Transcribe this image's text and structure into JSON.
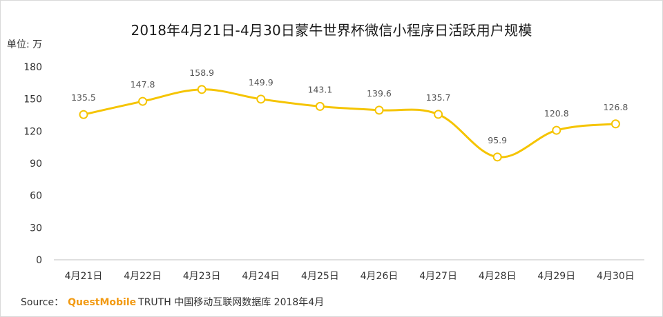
{
  "chart_data": {
    "type": "line",
    "title": "2018年4月21日-4月30日蒙牛世界杯微信小程序日活跃用户规模",
    "unit_label": "单位: 万",
    "categories": [
      "4月21日",
      "4月22日",
      "4月23日",
      "4月24日",
      "4月25日",
      "4月26日",
      "4月27日",
      "4月28日",
      "4月29日",
      "4月30日"
    ],
    "values": [
      135.5,
      147.8,
      158.9,
      149.9,
      143.1,
      139.6,
      135.7,
      95.9,
      120.8,
      126.8
    ],
    "value_labels": [
      "135.5",
      "147.8",
      "158.9",
      "149.9",
      "143.1",
      "139.6",
      "135.7",
      "95.9",
      "120.8",
      "126.8"
    ],
    "ylim": [
      0,
      180
    ],
    "yticks": [
      0,
      30,
      60,
      90,
      120,
      150,
      180
    ],
    "grid": false,
    "legend": "none",
    "colors": {
      "line": "#f5c400",
      "marker_fill": "#ffffff",
      "marker_stroke": "#f5c400",
      "axis": "#bfbfbf"
    }
  },
  "source": {
    "prefix": "Source：",
    "brand": "QuestMobile",
    "rest": "TRUTH 中国移动互联网数据库 2018年4月"
  }
}
